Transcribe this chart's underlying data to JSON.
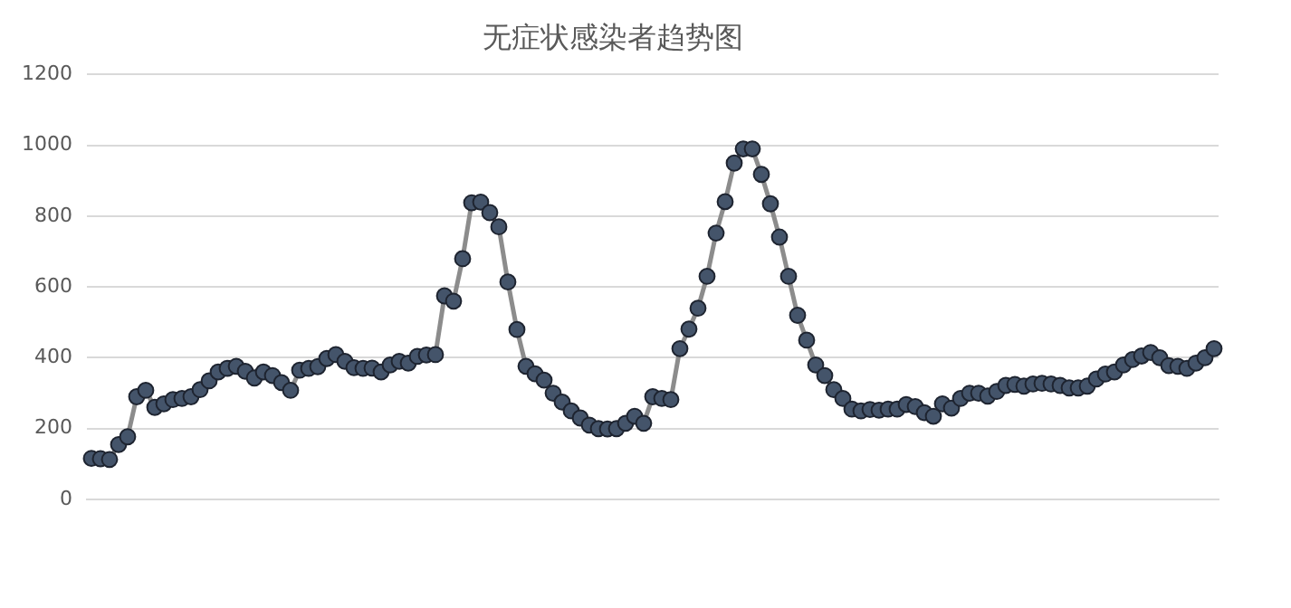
{
  "chart_data": {
    "type": "line",
    "title": "无症状感染者趋势图",
    "categories": [
      null,
      null,
      null,
      null,
      null,
      null,
      null,
      null,
      null,
      null,
      null,
      null,
      null,
      null,
      null,
      null,
      null,
      null,
      null,
      null,
      null,
      null,
      null,
      null,
      null,
      null,
      null,
      null,
      null,
      null,
      null,
      null,
      null,
      null,
      null,
      null,
      null,
      null,
      null,
      null,
      null,
      null,
      null,
      null,
      null,
      null,
      null,
      null,
      null,
      null,
      null,
      null,
      null,
      null,
      null,
      null,
      null,
      null,
      null,
      null,
      null,
      null,
      null,
      null,
      null,
      null,
      null,
      null,
      null,
      null,
      null,
      null,
      null,
      null,
      null,
      null,
      null,
      null,
      null,
      null,
      null,
      null,
      null,
      null,
      null,
      null,
      null,
      null,
      null,
      null,
      null,
      null,
      null,
      null,
      null,
      null,
      null,
      null,
      null,
      null,
      null,
      null,
      null,
      null,
      null,
      null,
      null,
      null,
      null,
      null,
      null,
      null,
      null,
      null,
      null,
      null,
      null,
      null,
      null,
      null,
      null,
      null,
      null,
      null,
      null
    ],
    "series": [
      {
        "color": "#44546a",
        "values": [
          116,
          115,
          113,
          155,
          177,
          290,
          308,
          260,
          270,
          282,
          285,
          290,
          310,
          335,
          360,
          370,
          376,
          362,
          343,
          360,
          350,
          330,
          308,
          365,
          370,
          375,
          398,
          409,
          390,
          372,
          370,
          371,
          360,
          380,
          390,
          385,
          404,
          408,
          409,
          575,
          560,
          680,
          838,
          840,
          810,
          770,
          614,
          480,
          376,
          355,
          337,
          300,
          275,
          250,
          230,
          210,
          200,
          199,
          200,
          215,
          235,
          215,
          290,
          285,
          282,
          426,
          481,
          540,
          630,
          752,
          841,
          950,
          990,
          990,
          918,
          835,
          741,
          630,
          520,
          450,
          380,
          350,
          310,
          285,
          255,
          250,
          254,
          252,
          255,
          255,
          268,
          262,
          245,
          235,
          270,
          258,
          285,
          300,
          300,
          292,
          305,
          322,
          325,
          320,
          326,
          328,
          326,
          322,
          315,
          315,
          320,
          340,
          354,
          360,
          380,
          395,
          405,
          415,
          400,
          378,
          376,
          370,
          385,
          400,
          426
        ]
      }
    ],
    "ylim": [
      0,
      1200
    ],
    "yticks": [
      0,
      200,
      400,
      600,
      800,
      1000,
      1200
    ],
    "grid": "y",
    "legend": false,
    "tick_labels": "y",
    "marker": "circle",
    "line_style": "solid"
  }
}
